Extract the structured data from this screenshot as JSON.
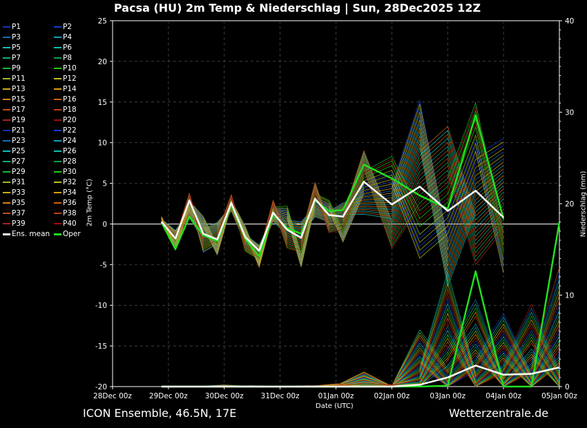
{
  "title": "Pacsa  (HU)  2m Temp & Niederschlag | Sun, 28Dec2025 12Z",
  "footer": {
    "model": "ICON Ensemble, 46.5N, 17E",
    "source": "Wetterzentrale.de"
  },
  "legend": {
    "members": [
      "P1",
      "P2",
      "P3",
      "P4",
      "P5",
      "P6",
      "P7",
      "P8",
      "P9",
      "P10",
      "P11",
      "P12",
      "P13",
      "P14",
      "P15",
      "P16",
      "P17",
      "P18",
      "P19",
      "P20",
      "P21",
      "P22",
      "P23",
      "P24",
      "P25",
      "P26",
      "P27",
      "P28",
      "P29",
      "P30",
      "P31",
      "P32",
      "P33",
      "P34",
      "P35",
      "P36",
      "P37",
      "P38",
      "P39",
      "P40"
    ],
    "member_colors": [
      "#1030c0",
      "#1040d0",
      "#1070c0",
      "#10a0c0",
      "#10c0c0",
      "#10c0b0",
      "#10b080",
      "#10a050",
      "#10c030",
      "#20d010",
      "#a0c020",
      "#c0c020",
      "#d0b010",
      "#e0a010",
      "#e08010",
      "#d06010",
      "#c05010",
      "#c04010",
      "#b02020",
      "#a01010",
      "#1030c0",
      "#1040d0",
      "#1070c0",
      "#10a0c0",
      "#10c0c0",
      "#10c0b0",
      "#10b080",
      "#10a050",
      "#10c030",
      "#20d010",
      "#a0c020",
      "#c0c020",
      "#d0b010",
      "#e0a010",
      "#e08010",
      "#d06010",
      "#c05010",
      "#c04010",
      "#b02020",
      "#a01010"
    ],
    "mean_label": "Ens. mean",
    "oper_label": "Oper",
    "mean_color": "#ffffff",
    "oper_color": "#20e020"
  },
  "chart_data": {
    "type": "line",
    "x": [
      "28Dec 12z",
      "29Dec 00z",
      "29Dec 12z",
      "30Dec 00z",
      "30Dec 12z",
      "31Dec 00z",
      "31Dec 12z",
      "01Jan 00z",
      "01Jan 12z",
      "02Jan 00z",
      "02Jan 12z",
      "03Jan 00z",
      "03Jan 12z",
      "04Jan 00z",
      "04Jan 12z",
      "05Jan 00z"
    ],
    "xticks": [
      "28Dec 00z",
      "29Dec 00z",
      "30Dec 00z",
      "31Dec 00z",
      "01Jan 00z",
      "02Jan 00z",
      "03Jan 00z",
      "04Jan 00z",
      "05Jan 00z"
    ],
    "xlabel": "Date (UTC)",
    "ylabel_left": "2m Temp (°C)",
    "ylabel_right": "Niederschlag (mm)",
    "ylim_left": [
      -20,
      25
    ],
    "ylim_right": [
      0,
      40
    ],
    "yticks_left": [
      -20,
      -15,
      -10,
      -5,
      0,
      5,
      10,
      15,
      20,
      25
    ],
    "yticks_right": [
      0,
      10,
      20,
      30,
      40
    ],
    "grid": true,
    "legend_position": "left",
    "temperature": {
      "ens_mean": [
        0.3,
        -1.8,
        2.9,
        -1.2,
        -1.9,
        2.6,
        -1.6,
        -3.3,
        1.4,
        -0.7,
        -1.7,
        3.1,
        1.1,
        0.9,
        5.2,
        2.4,
        4.6,
        1.6,
        4.1,
        0.8
      ],
      "oper": [
        0.2,
        -3.1,
        0.9,
        -1.4,
        -2.1,
        2.4,
        -1.8,
        -4.0,
        1.2,
        -0.5,
        -1.2,
        2.9,
        1.6,
        1.7,
        7.3,
        5.6,
        3.5,
        1.9,
        13.4,
        0.6
      ],
      "members_min": [
        0.0,
        -3.2,
        0.8,
        -3.5,
        -3.8,
        1.6,
        -3.4,
        -5.3,
        0.3,
        -3.0,
        -5.3,
        0.9,
        -1.1,
        -2.2,
        1.2,
        -3.0,
        -4.2,
        -7.6,
        -5.0,
        -6.0
      ],
      "members_max": [
        0.9,
        -0.8,
        3.8,
        0.9,
        0.2,
        3.6,
        -0.3,
        -2.6,
        2.9,
        2.2,
        0.3,
        5.1,
        2.9,
        2.6,
        9.0,
        8.3,
        15.2,
        12.0,
        14.9,
        10.5
      ]
    },
    "temperature_times": [
      "28Dec 21z",
      "29Dec 03z",
      "29Dec 09z",
      "29Dec 15z",
      "29Dec 21z",
      "30Dec 03z",
      "30Dec 09z",
      "30Dec 15z",
      "30Dec 21z",
      "31Dec 03z",
      "31Dec 09z",
      "31Dec 15z",
      "31Dec 21z",
      "01Jan 03z",
      "01Jan 12z",
      "02Jan 00z",
      "02Jan 12z",
      "03Jan 00z",
      "03Jan 12z",
      "04Jan 00z"
    ],
    "precipitation": {
      "times": [
        "28Dec 21z",
        "29Dec 12z",
        "30Dec 00z",
        "30Dec 12z",
        "31Dec 00z",
        "31Dec 12z",
        "01Jan 00z",
        "01Jan 12z",
        "02Jan 00z",
        "02Jan 12z",
        "03Jan 00z",
        "03Jan 12z",
        "04Jan 00z",
        "04Jan 12z",
        "05Jan 00z"
      ],
      "ens_mean": [
        0,
        0,
        0,
        0,
        0,
        0,
        0,
        0,
        0,
        0.2,
        1.0,
        2.3,
        1.3,
        1.4,
        2.1
      ],
      "oper": [
        0,
        0,
        0,
        0,
        0,
        0,
        0,
        0,
        0,
        0,
        0.1,
        12.6,
        0,
        0,
        18.0
      ],
      "members_max": [
        0,
        0,
        0.2,
        0.1,
        0,
        0.1,
        0.3,
        1.6,
        0.2,
        6.2,
        12.5,
        9.5,
        8.0,
        9.0,
        13.0
      ]
    }
  }
}
